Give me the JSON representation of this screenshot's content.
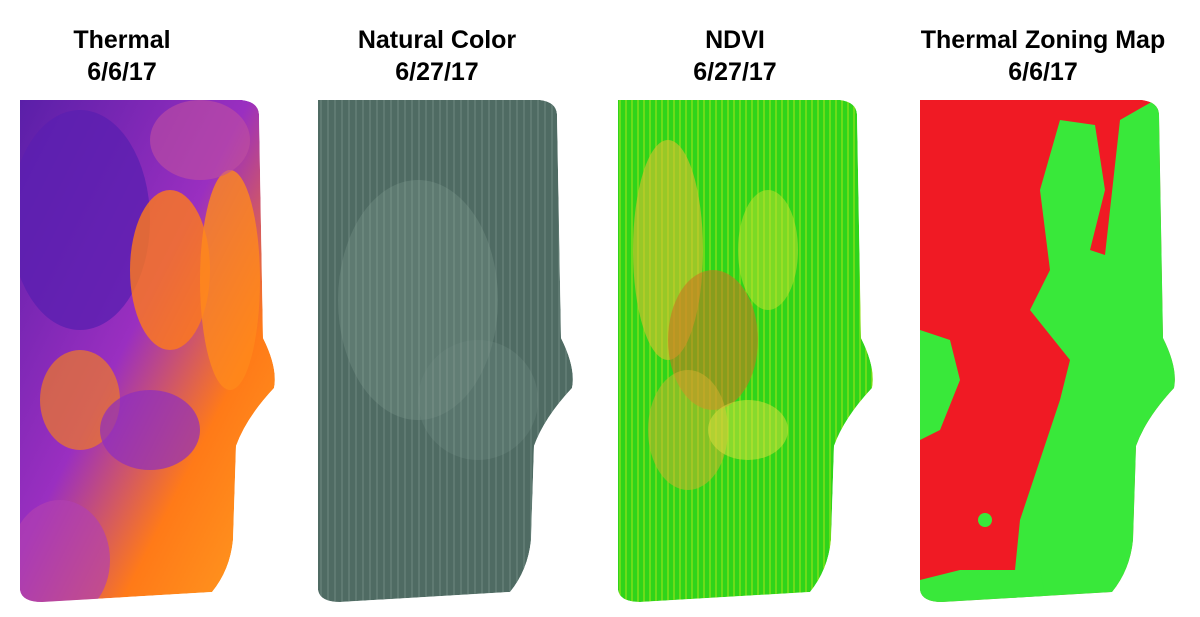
{
  "panels": [
    {
      "title": "Thermal",
      "date": "6/6/17"
    },
    {
      "title": "Natural Color",
      "date": "6/27/17"
    },
    {
      "title": "NDVI",
      "date": "6/27/17"
    },
    {
      "title": "Thermal Zoning Map",
      "date": "6/6/17"
    }
  ]
}
